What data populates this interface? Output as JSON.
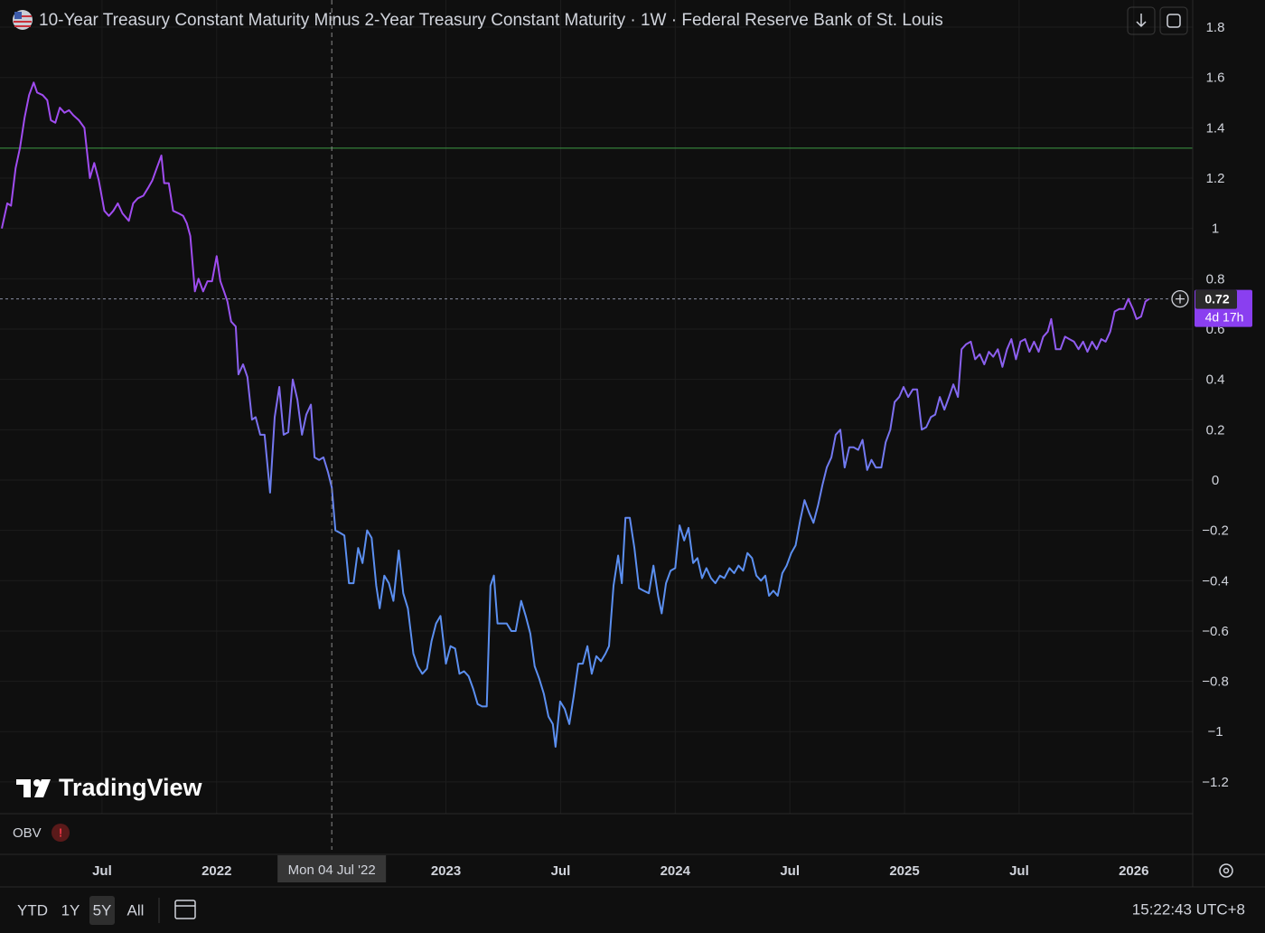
{
  "chart_data": {
    "type": "line",
    "title": "10-Year Treasury Constant Maturity Minus 2-Year Treasury Constant Maturity · 1W · Federal Reserve Bank of St. Louis",
    "line_colors": [
      "#a04cf0",
      "#5b8ff0"
    ],
    "x": [
      2021.063,
      2021.087,
      2021.103,
      2021.123,
      2021.142,
      2021.162,
      2021.182,
      2021.202,
      2021.217,
      2021.241,
      2021.261,
      2021.277,
      2021.296,
      2021.316,
      2021.336,
      2021.356,
      2021.375,
      2021.399,
      2021.423,
      2021.447,
      2021.466,
      2021.486,
      2021.51,
      2021.53,
      2021.549,
      2021.569,
      2021.589,
      2021.617,
      2021.636,
      2021.656,
      2021.68,
      2021.7,
      2021.719,
      2021.735,
      2021.759,
      2021.771,
      2021.791,
      2021.81,
      2021.834,
      2021.854,
      2021.87,
      2021.885,
      2021.905,
      2021.921,
      2021.941,
      2021.96,
      2021.98,
      2022,
      2022.016,
      2022.032,
      2022.047,
      2022.063,
      2022.083,
      2022.095,
      2022.115,
      2022.134,
      2022.154,
      2022.17,
      2022.19,
      2022.209,
      2022.233,
      2022.253,
      2022.273,
      2022.292,
      2022.312,
      2022.332,
      2022.352,
      2022.372,
      2022.391,
      2022.411,
      2022.427,
      2022.447,
      2022.466,
      2022.486,
      2022.502,
      2022.518,
      2022.538,
      2022.557,
      2022.577,
      2022.597,
      2022.617,
      2022.636,
      2022.656,
      2022.676,
      2022.696,
      2022.711,
      2022.731,
      2022.751,
      2022.771,
      2022.794,
      2022.814,
      2022.834,
      2022.858,
      2022.877,
      2022.897,
      2022.917,
      2022.937,
      2022.957,
      2022.976,
      2023,
      2023.02,
      2023.04,
      2023.059,
      2023.079,
      2023.099,
      2023.119,
      2023.138,
      2023.158,
      2023.178,
      2023.194,
      2023.209,
      2023.225,
      2023.245,
      2023.265,
      2023.285,
      2023.304,
      2023.328,
      2023.348,
      2023.368,
      2023.387,
      2023.407,
      2023.427,
      2023.447,
      2023.466,
      2023.478,
      2023.498,
      2023.518,
      2023.538,
      2023.557,
      2023.577,
      2023.597,
      2023.617,
      2023.636,
      2023.656,
      2023.676,
      2023.696,
      2023.711,
      2023.731,
      2023.751,
      2023.767,
      2023.783,
      2023.802,
      2023.822,
      2023.842,
      2023.862,
      2023.885,
      2023.905,
      2023.925,
      2023.941,
      2023.96,
      2023.98,
      2024,
      2024.019,
      2024.039,
      2024.058,
      2024.078,
      2024.097,
      2024.117,
      2024.136,
      2024.156,
      2024.175,
      2024.195,
      2024.214,
      2024.237,
      2024.257,
      2024.276,
      2024.296,
      2024.315,
      2024.335,
      2024.354,
      2024.374,
      2024.393,
      2024.409,
      2024.428,
      2024.447,
      2024.467,
      2024.486,
      2024.506,
      2024.525,
      2024.545,
      2024.564,
      2024.584,
      2024.603,
      2024.623,
      2024.642,
      2024.661,
      2024.681,
      2024.7,
      2024.72,
      2024.739,
      2024.759,
      2024.778,
      2024.798,
      2024.817,
      2024.837,
      2024.856,
      2024.875,
      2024.899,
      2024.918,
      2024.938,
      2024.957,
      2024.977,
      2024.996,
      2025.016,
      2025.036,
      2025.055,
      2025.075,
      2025.095,
      2025.115,
      2025.134,
      2025.154,
      2025.174,
      2025.194,
      2025.213,
      2025.233,
      2025.249,
      2025.269,
      2025.289,
      2025.308,
      2025.328,
      2025.348,
      2025.368,
      2025.387,
      2025.407,
      2025.427,
      2025.447,
      2025.466,
      2025.486,
      2025.506,
      2025.526,
      2025.545,
      2025.565,
      2025.585,
      2025.605,
      2025.625,
      2025.64,
      2025.66,
      2025.68,
      2025.7,
      2025.719,
      2025.739,
      2025.759,
      2025.779,
      2025.798,
      2025.818,
      2025.838,
      2025.858,
      2025.877,
      2025.897,
      2025.917,
      2025.937,
      2025.957,
      2025.976,
      2025.996,
      2026.012,
      2026.032,
      2026.051,
      2026.067
    ],
    "values": [
      1.0,
      1.1,
      1.09,
      1.24,
      1.32,
      1.44,
      1.53,
      1.58,
      1.54,
      1.53,
      1.51,
      1.43,
      1.42,
      1.48,
      1.46,
      1.47,
      1.45,
      1.43,
      1.4,
      1.2,
      1.26,
      1.19,
      1.07,
      1.05,
      1.07,
      1.1,
      1.06,
      1.03,
      1.1,
      1.12,
      1.13,
      1.16,
      1.19,
      1.23,
      1.29,
      1.18,
      1.18,
      1.07,
      1.06,
      1.05,
      1.02,
      0.97,
      0.75,
      0.8,
      0.75,
      0.79,
      0.79,
      0.89,
      0.79,
      0.75,
      0.71,
      0.63,
      0.61,
      0.42,
      0.46,
      0.41,
      0.24,
      0.25,
      0.18,
      0.18,
      -0.05,
      0.25,
      0.37,
      0.18,
      0.19,
      0.4,
      0.32,
      0.18,
      0.26,
      0.3,
      0.09,
      0.08,
      0.09,
      0.03,
      -0.03,
      -0.2,
      -0.21,
      -0.22,
      -0.41,
      -0.41,
      -0.27,
      -0.33,
      -0.2,
      -0.23,
      -0.42,
      -0.51,
      -0.38,
      -0.41,
      -0.48,
      -0.28,
      -0.45,
      -0.51,
      -0.69,
      -0.74,
      -0.77,
      -0.75,
      -0.64,
      -0.57,
      -0.54,
      -0.73,
      -0.66,
      -0.67,
      -0.77,
      -0.76,
      -0.78,
      -0.83,
      -0.89,
      -0.9,
      -0.9,
      -0.42,
      -0.38,
      -0.57,
      -0.57,
      -0.57,
      -0.6,
      -0.6,
      -0.48,
      -0.54,
      -0.61,
      -0.74,
      -0.79,
      -0.85,
      -0.94,
      -0.97,
      -1.06,
      -0.88,
      -0.91,
      -0.97,
      -0.86,
      -0.73,
      -0.73,
      -0.66,
      -0.77,
      -0.7,
      -0.72,
      -0.69,
      -0.66,
      -0.42,
      -0.3,
      -0.41,
      -0.15,
      -0.15,
      -0.27,
      -0.43,
      -0.44,
      -0.45,
      -0.34,
      -0.46,
      -0.53,
      -0.41,
      -0.36,
      -0.35,
      -0.18,
      -0.24,
      -0.19,
      -0.33,
      -0.31,
      -0.39,
      -0.35,
      -0.39,
      -0.41,
      -0.38,
      -0.39,
      -0.35,
      -0.37,
      -0.34,
      -0.36,
      -0.29,
      -0.31,
      -0.38,
      -0.4,
      -0.38,
      -0.46,
      -0.44,
      -0.46,
      -0.37,
      -0.34,
      -0.29,
      -0.26,
      -0.16,
      -0.08,
      -0.13,
      -0.17,
      -0.1,
      -0.02,
      0.05,
      0.09,
      0.18,
      0.2,
      0.05,
      0.13,
      0.13,
      0.12,
      0.16,
      0.04,
      0.08,
      0.05,
      0.05,
      0.15,
      0.2,
      0.31,
      0.33,
      0.37,
      0.33,
      0.36,
      0.36,
      0.2,
      0.21,
      0.25,
      0.26,
      0.33,
      0.28,
      0.33,
      0.38,
      0.33,
      0.52,
      0.54,
      0.55,
      0.48,
      0.5,
      0.46,
      0.51,
      0.49,
      0.52,
      0.45,
      0.52,
      0.56,
      0.48,
      0.55,
      0.56,
      0.51,
      0.55,
      0.51,
      0.57,
      0.59,
      0.64,
      0.52,
      0.52,
      0.57,
      0.56,
      0.55,
      0.52,
      0.55,
      0.51,
      0.55,
      0.52,
      0.56,
      0.55,
      0.59,
      0.67,
      0.68,
      0.68,
      0.72,
      0.68,
      0.64,
      0.65,
      0.71,
      0.72
    ],
    "xlim": [
      2021.055,
      2026.257
    ],
    "ylim": [
      -1.326,
      1.908
    ],
    "xticks": [
      {
        "value": 2021.5,
        "label": "Jul"
      },
      2022,
      2023,
      {
        "value": 2023.5,
        "label": "Jul"
      },
      2024,
      {
        "value": 2024.5,
        "label": "Jul"
      },
      2025,
      {
        "value": 2025.5,
        "label": "Jul"
      },
      2026
    ],
    "yticks": [
      1.8,
      1.6,
      1.4,
      1.2,
      1,
      0.8,
      0.6,
      0.4,
      0.2,
      0,
      {
        "value": -0.2,
        "label": "−0.2"
      },
      {
        "value": -0.4,
        "label": "−0.4"
      },
      {
        "value": -0.6,
        "label": "−0.6"
      },
      {
        "value": -0.8,
        "label": "−0.8"
      },
      {
        "value": -1,
        "label": "−1"
      },
      {
        "value": -1.2,
        "label": "−1.2"
      }
    ],
    "grid": true,
    "hline": {
      "value": 1.319,
      "color": "#3d9a45"
    },
    "crosshair": {
      "value": 2022.502,
      "label": "Mon 04 Jul '22"
    },
    "price_label": {
      "value": 0.72,
      "countdown": "4d 17h",
      "color": "#8a3ff0"
    }
  },
  "ui": {
    "brand": "TradingView",
    "indicator": "OBV",
    "warning": "!",
    "ranges": [
      "YTD",
      "1Y",
      "5Y",
      "All"
    ],
    "active_range": 2,
    "clock": "15:22:43 UTC+8"
  }
}
